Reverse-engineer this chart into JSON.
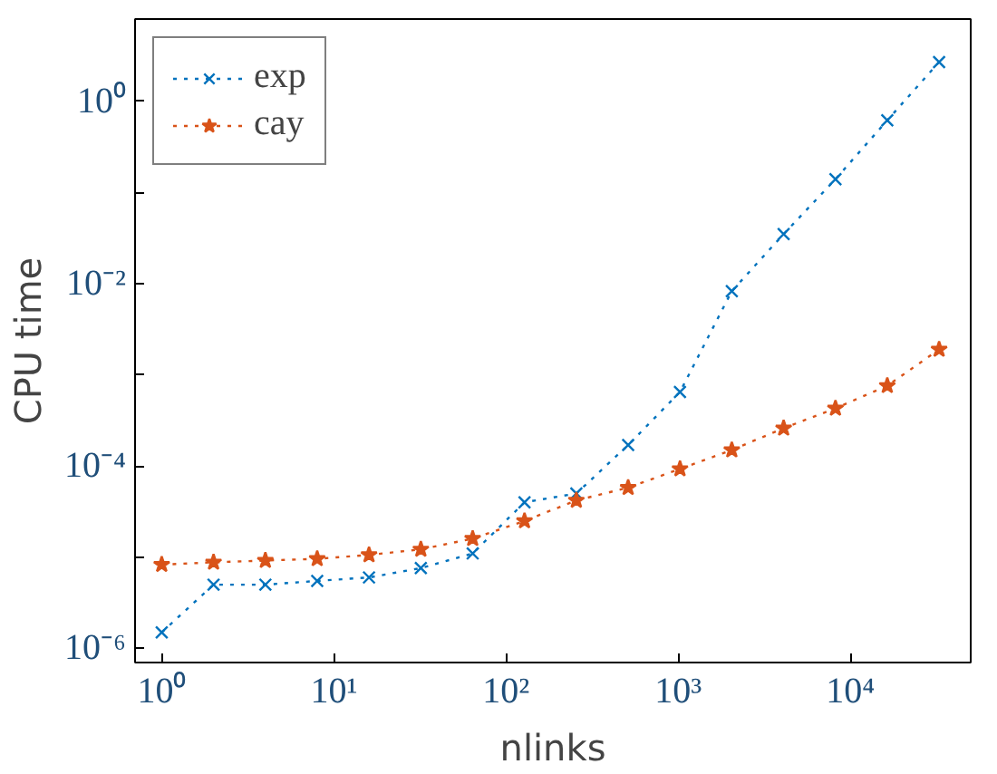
{
  "chart_data": {
    "type": "line",
    "xlabel": "nlinks",
    "ylabel": "CPU time",
    "log": "xy",
    "grid": false,
    "legend": "top left",
    "line_style": "dotted",
    "x": [
      1,
      2,
      4,
      8,
      16,
      32,
      64,
      128,
      256,
      512,
      1024,
      2048,
      4096,
      8192,
      16384,
      32768
    ],
    "series": [
      {
        "name": "exp",
        "color": "#0072bd",
        "marker": "cross",
        "values": [
          1.5e-06,
          5e-06,
          5e-06,
          5.5e-06,
          6e-06,
          7.6e-06,
          1.1e-05,
          4e-05,
          5e-05,
          0.00017,
          0.00065,
          0.0083,
          0.035,
          0.14,
          0.62,
          2.7
        ]
      },
      {
        "name": "cay",
        "color": "#d95319",
        "marker": "star",
        "values": [
          8.3e-06,
          8.8e-06,
          9.2e-06,
          9.6e-06,
          1.06e-05,
          1.22e-05,
          1.6e-05,
          2.5e-05,
          4.2e-05,
          5.8e-05,
          9.3e-05,
          0.00015,
          0.00026,
          0.00043,
          0.00076,
          0.0019
        ]
      }
    ],
    "xlim": [
      0.7,
      50000
    ],
    "ylim": [
      7e-07,
      8
    ],
    "xticks": [
      {
        "value": 1,
        "label": "10⁰"
      },
      {
        "value": 10,
        "label": "10¹"
      },
      {
        "value": 100,
        "label": "10²"
      },
      {
        "value": 1000,
        "label": "10³"
      },
      {
        "value": 10000,
        "label": "10⁴"
      }
    ],
    "yticks": [
      {
        "value": 1e-06,
        "label": "10⁻⁶"
      },
      {
        "value": 1e-05,
        "label": null
      },
      {
        "value": 0.0001,
        "label": "10⁻⁴"
      },
      {
        "value": 0.001,
        "label": null
      },
      {
        "value": 0.01,
        "label": "10⁻²"
      },
      {
        "value": 0.1,
        "label": null
      },
      {
        "value": 1,
        "label": "10⁰"
      }
    ]
  }
}
